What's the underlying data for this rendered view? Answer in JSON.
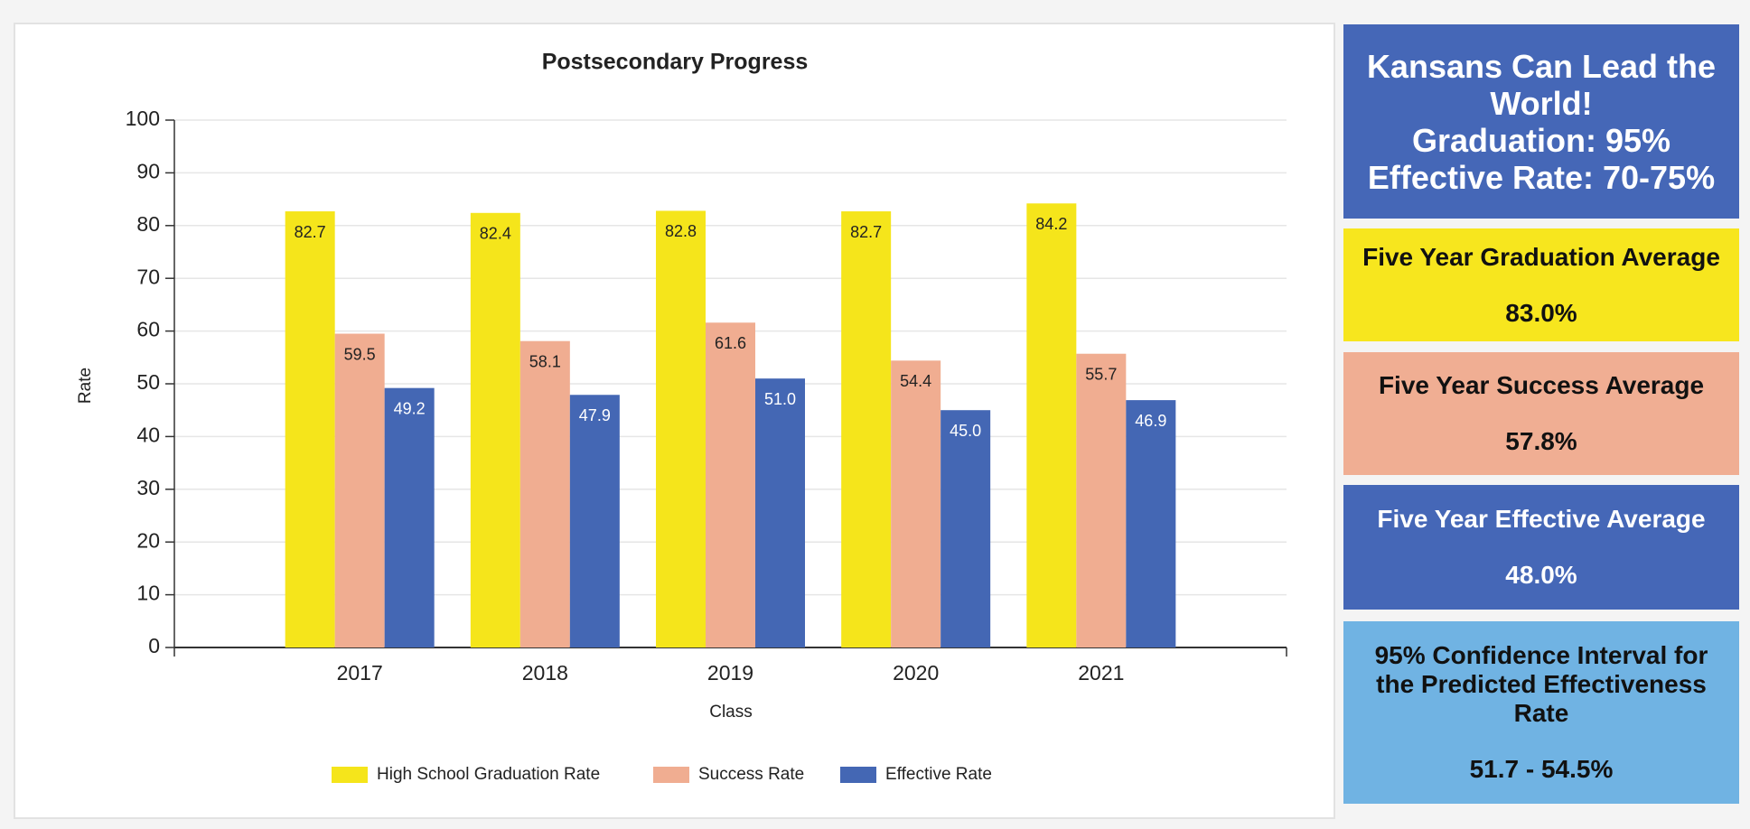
{
  "chart_data": {
    "type": "bar",
    "title": "Postsecondary Progress",
    "x_label": "Class",
    "y_label": "Rate",
    "categories": [
      "2017",
      "2018",
      "2019",
      "2020",
      "2021"
    ],
    "series": [
      {
        "name": "High School Graduation Rate",
        "color": "#f5e51b",
        "values": [
          82.7,
          82.4,
          82.8,
          82.7,
          84.2
        ],
        "value_labels": [
          "82.7",
          "82.4",
          "82.8",
          "82.7",
          "84.2"
        ]
      },
      {
        "name": "Success Rate",
        "color": "#f0ad91",
        "values": [
          59.5,
          58.1,
          61.6,
          54.4,
          55.7
        ],
        "value_labels": [
          "59.5",
          "58.1",
          "61.6",
          "54.4",
          "55.7"
        ]
      },
      {
        "name": "Effective Rate",
        "color": "#4467b4",
        "values": [
          49.2,
          47.9,
          51.0,
          45.0,
          46.9
        ],
        "value_labels": [
          "49.2",
          "47.9",
          "51.0",
          "45.0",
          "46.9"
        ]
      }
    ],
    "ylim": [
      0,
      100
    ],
    "yticks": [
      0,
      10,
      20,
      30,
      40,
      50,
      60,
      70,
      80,
      90,
      100
    ],
    "grid": true,
    "legend": "bottom"
  },
  "side_panels": {
    "goal": {
      "lines": [
        "Kansans Can Lead the World!",
        "Graduation: 95%",
        "Effective Rate: 70-75%"
      ]
    },
    "boxes": [
      {
        "title": "Five Year Graduation Average",
        "value": "83.0%"
      },
      {
        "title": "Five Year Success Average",
        "value": "57.8%"
      },
      {
        "title": "Five Year Effective Average",
        "value": "48.0%"
      },
      {
        "title": "95% Confidence Interval for the Predicted Effectiveness Rate",
        "value": "51.7 - 54.5%"
      }
    ]
  }
}
